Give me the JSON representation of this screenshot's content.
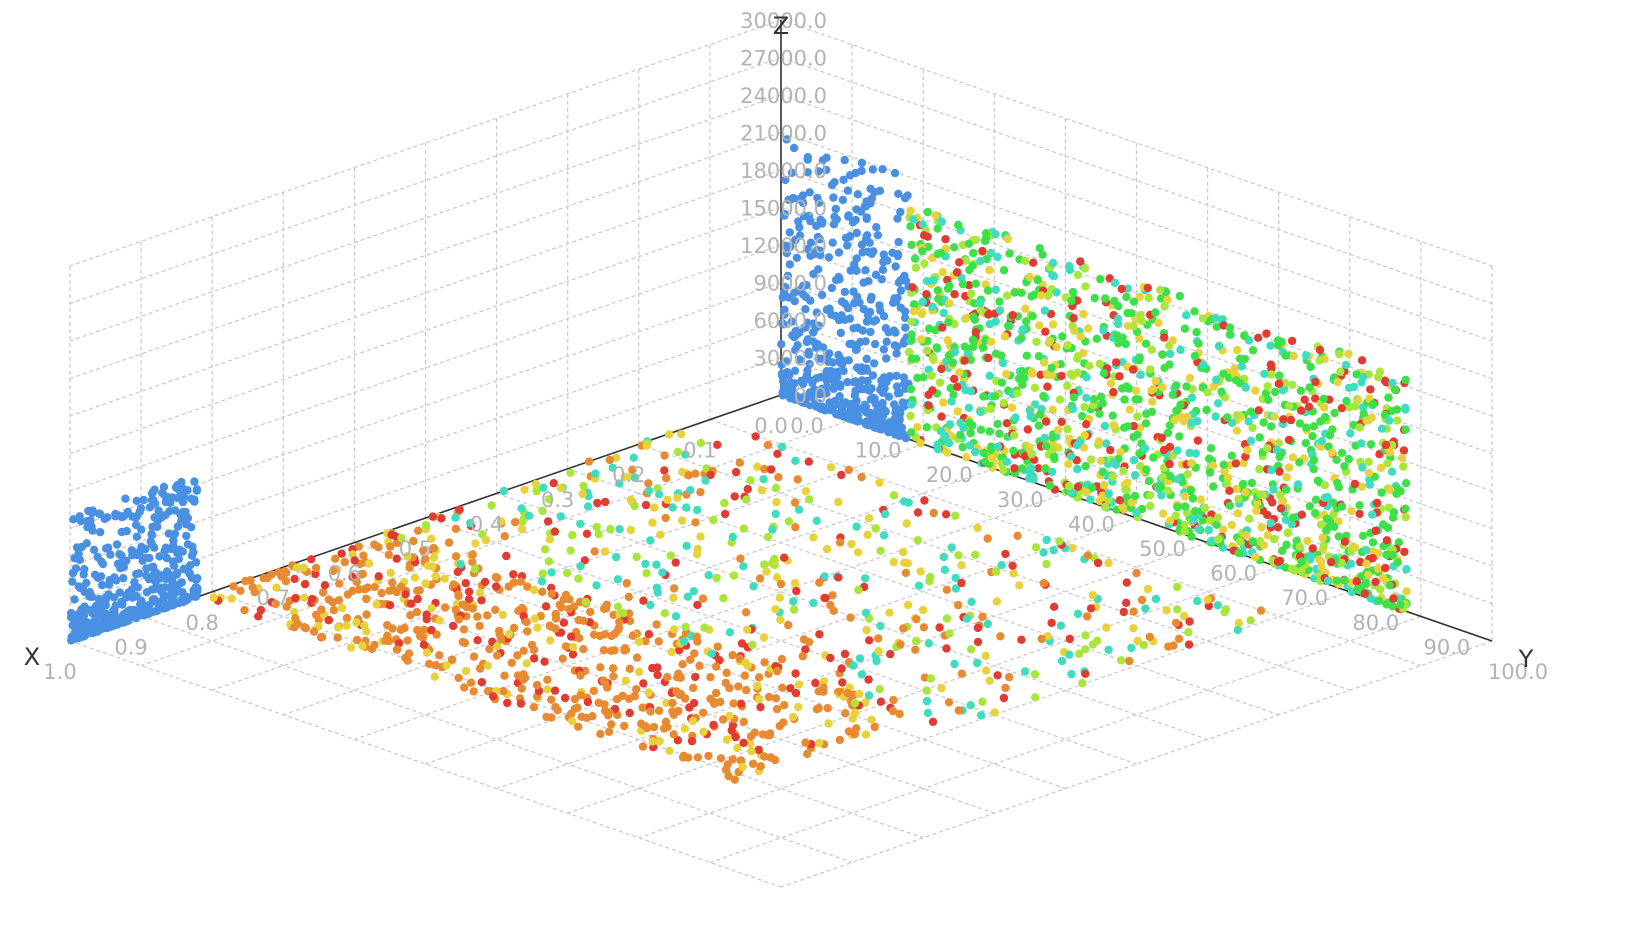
{
  "chart_data": {
    "type": "scatter",
    "subtype": "scatter3d",
    "axes": {
      "x": {
        "label": "X",
        "range": [
          0,
          1
        ],
        "ticks": [
          "0.0",
          "0.1",
          "0.2",
          "0.3",
          "0.4",
          "0.5",
          "0.6",
          "0.7",
          "0.8",
          "0.9",
          "1.0"
        ]
      },
      "y": {
        "label": "Y",
        "range": [
          0,
          100
        ],
        "ticks": [
          "0.0",
          "10.0",
          "20.0",
          "30.0",
          "40.0",
          "50.0",
          "60.0",
          "70.0",
          "80.0",
          "90.0",
          "100.0"
        ]
      },
      "z": {
        "label": "Z",
        "range": [
          0,
          30000
        ],
        "ticks": [
          "0.0",
          "3000.0",
          "6000.0",
          "9000.0",
          "12000.0",
          "15000.0",
          "18000.0",
          "21000.0",
          "24000.0",
          "27000.0",
          "30000.0"
        ]
      }
    },
    "grid": true,
    "legend": "none",
    "colors": {
      "blue": "#4a90e2",
      "green": "#3ee04a",
      "light_green": "#a8e63c",
      "cyan": "#3fdcc0",
      "yellow": "#e8d23c",
      "orange": "#e88a32",
      "red": "#e23c32"
    },
    "clusters": [
      {
        "id": "yz-wall-blue",
        "plane": "x=0",
        "y_range": [
          0,
          18
        ],
        "z_range": [
          0,
          21000
        ],
        "count": 520,
        "color": "blue",
        "z_skew": 2.2
      },
      {
        "id": "yz-wall-mixed",
        "plane": "x=0",
        "y_range": [
          18,
          88
        ],
        "z_range": [
          0,
          19000
        ],
        "count": 1500,
        "colors": [
          "green",
          "green",
          "light_green",
          "cyan",
          "red",
          "yellow"
        ],
        "z_skew": 1.3
      },
      {
        "id": "xz-wall-blue",
        "plane": "y=0",
        "x_range": [
          0.82,
          1.0
        ],
        "z_range": [
          0,
          10000
        ],
        "count": 430,
        "color": "blue",
        "z_skew": 2.3
      },
      {
        "id": "floor-orange",
        "plane": "z=0",
        "x_range": [
          0.55,
          0.82
        ],
        "y_range": [
          0,
          75
        ],
        "count": 650,
        "colors": [
          "orange",
          "orange",
          "orange",
          "red",
          "yellow"
        ]
      },
      {
        "id": "floor-mixed",
        "plane": "z=0",
        "x_range": [
          0.1,
          0.58
        ],
        "y_range": [
          0,
          80
        ],
        "count": 520,
        "colors": [
          "cyan",
          "light_green",
          "orange",
          "red",
          "yellow"
        ]
      }
    ]
  }
}
